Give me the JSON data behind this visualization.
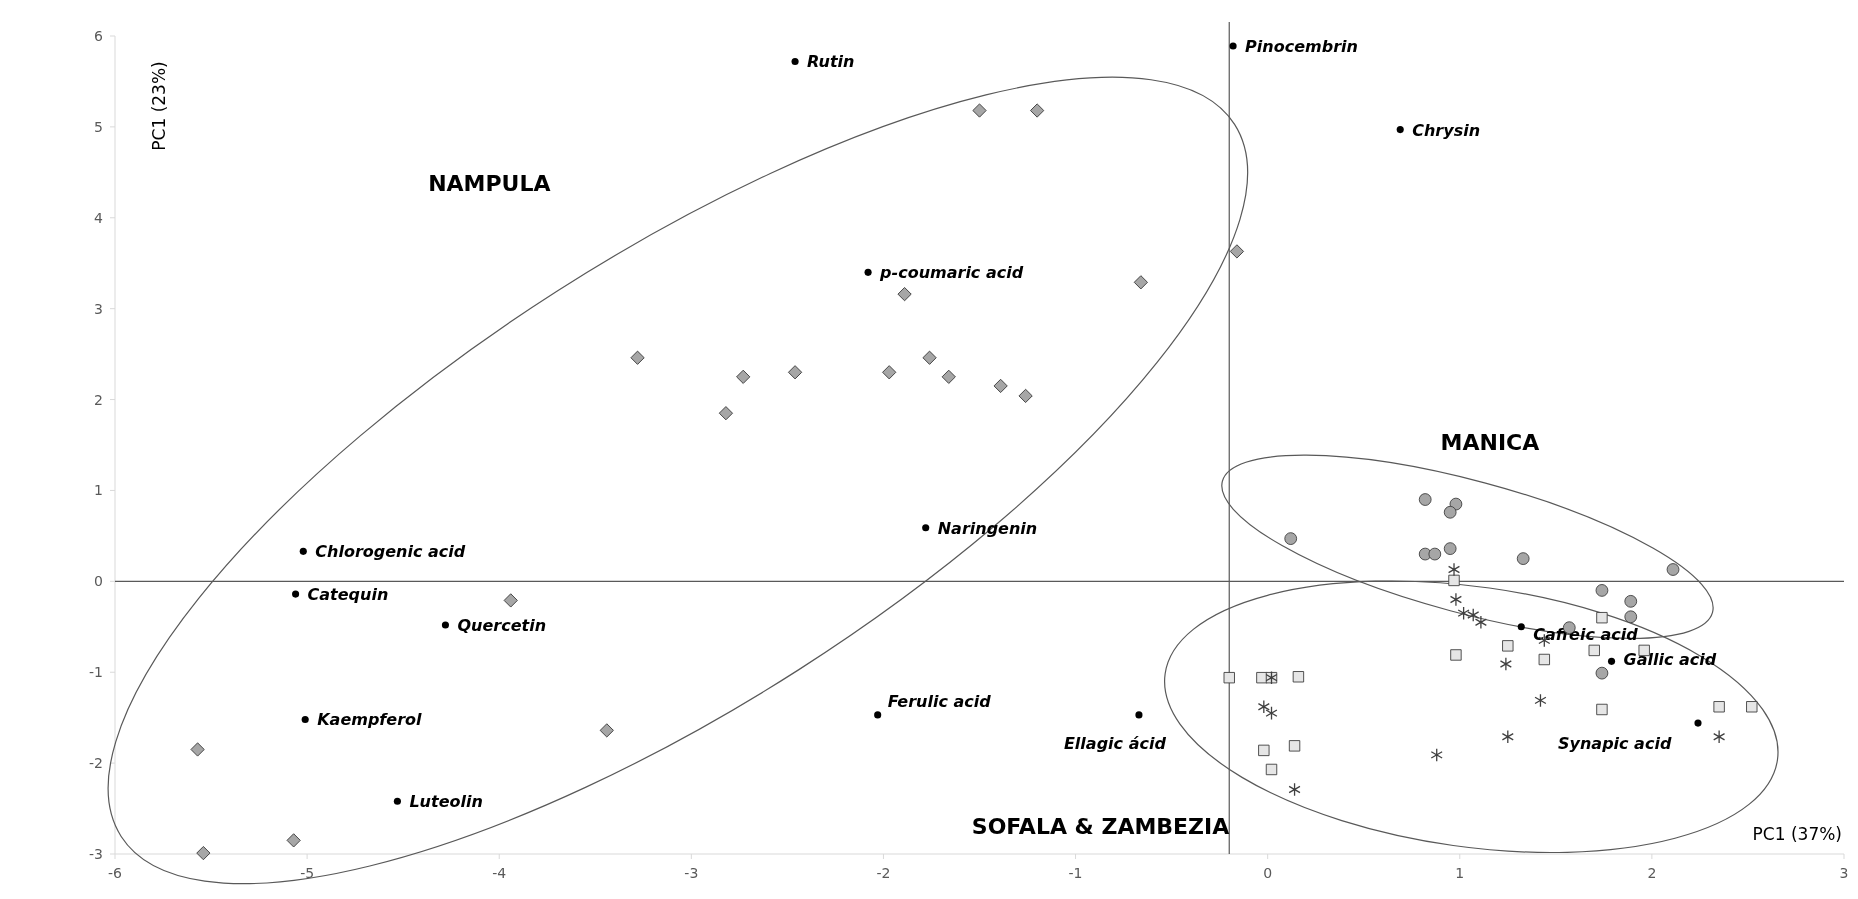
{
  "chart_data": {
    "type": "scatter",
    "xlabel": "PC1 (37%)",
    "ylabel": "PC1 (23%)",
    "annotations": [
      "NAMPULA",
      "MANICA",
      "SOFALA & ZAMBEZIA"
    ],
    "xlim": [
      -6,
      3
    ],
    "xticks": [
      -6,
      -5,
      -4,
      -3,
      -2,
      -1,
      0,
      1,
      2,
      3
    ],
    "ylim": [
      -3,
      6
    ],
    "yticks": [
      -3,
      -2,
      -1,
      0,
      1,
      2,
      3,
      4,
      5,
      6
    ],
    "grid": false,
    "legend": false,
    "ref_lines": [
      {
        "axis": "y",
        "value": 0,
        "color": "#595959"
      },
      {
        "axis": "x",
        "value": -0.2,
        "color": "#595959"
      }
    ],
    "series": [
      {
        "color": "#000000",
        "marker": "circle",
        "x": [
          -2.46,
          -0.18,
          0.69,
          -2.08,
          -1.78,
          -5.02,
          -5.06,
          -4.28,
          -5.01,
          -4.53,
          -2.03,
          -0.67,
          1.32,
          1.79,
          2.24
        ],
        "values": [
          5.72,
          5.89,
          4.97,
          3.4,
          0.59,
          0.33,
          -0.14,
          -0.48,
          -1.52,
          -2.42,
          -1.47,
          -1.47,
          -0.5,
          -0.88,
          -1.56
        ],
        "value_labels": [
          "Rutin",
          "Pinocembrin",
          "Chrysin",
          "p-coumaric acid",
          "Naringenin",
          "Chlorogenic acid",
          "Catequin",
          "Quercetin",
          "Kaempferol",
          "Luteolin",
          "Ferulic acid",
          "Ellagic ácid",
          "Caffeic acid",
          "Gallic acid",
          "Synapic acid"
        ]
      },
      {
        "color": "#a6a6a6",
        "marker": "diamond",
        "x": [
          -1.5,
          -1.2,
          -0.16,
          -0.66,
          -1.89,
          -3.28,
          -2.73,
          -2.46,
          -1.97,
          -1.76,
          -1.66,
          -1.39,
          -1.26,
          -2.82,
          -3.94,
          -3.44,
          -5.57,
          -5.07,
          -5.54
        ],
        "values": [
          5.18,
          5.18,
          3.63,
          3.29,
          3.16,
          2.46,
          2.25,
          2.3,
          2.3,
          2.46,
          2.25,
          2.15,
          2.04,
          1.85,
          -0.21,
          -1.64,
          -1.85,
          -2.85,
          -2.99
        ]
      },
      {
        "color": "#a6a6a6",
        "marker": "circle",
        "x": [
          0.12,
          0.82,
          0.98,
          0.95,
          0.82,
          0.87,
          0.95,
          1.33,
          2.11,
          1.74,
          1.89,
          1.89,
          1.57,
          1.74
        ],
        "values": [
          0.47,
          0.9,
          0.85,
          0.76,
          0.3,
          0.3,
          0.36,
          0.25,
          0.13,
          -0.1,
          -0.22,
          -0.39,
          -0.51,
          -1.01
        ]
      },
      {
        "color": "#e6e6e6",
        "marker": "square",
        "x": [
          0.97,
          1.74,
          0.98,
          1.25,
          1.44,
          1.7,
          1.96,
          -0.2,
          -0.03,
          0.02,
          0.16,
          1.74,
          2.35,
          2.52,
          -0.02,
          0.14,
          0.02
        ],
        "values": [
          0.01,
          -0.4,
          -0.81,
          -0.71,
          -0.86,
          -0.76,
          -0.76,
          -1.06,
          -1.06,
          -1.06,
          -1.05,
          -1.41,
          -1.38,
          -1.38,
          -1.86,
          -1.81,
          -2.07
        ]
      },
      {
        "color": "#404040",
        "marker": "cross",
        "x": [
          0.97,
          0.98,
          1.02,
          1.07,
          1.11,
          1.44,
          1.24,
          0.02,
          -0.02,
          0.02,
          1.42,
          1.25,
          0.88,
          2.35,
          0.14
        ],
        "values": [
          0.13,
          -0.2,
          -0.35,
          -0.37,
          -0.45,
          -0.65,
          -0.91,
          -1.06,
          -1.38,
          -1.45,
          -1.31,
          -1.71,
          -1.91,
          -1.71,
          -2.29
        ]
      }
    ]
  }
}
